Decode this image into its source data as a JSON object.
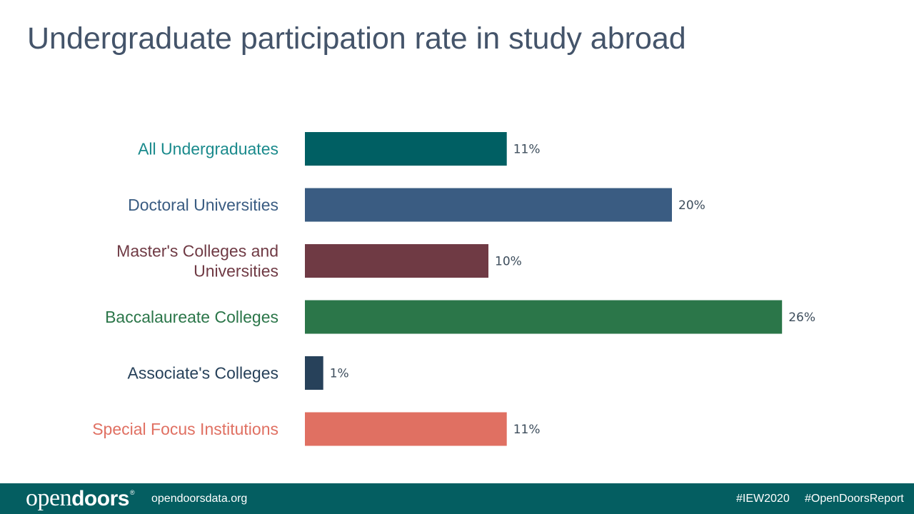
{
  "header": {
    "title": "Undergraduate participation rate in study abroad"
  },
  "chart_data": {
    "type": "bar",
    "orientation": "horizontal",
    "title": "Undergraduate participation rate in study abroad",
    "categories": [
      "All Undergraduates",
      "Doctoral Universities",
      "Master's Colleges and Universities",
      "Baccalaureate Colleges",
      "Associate's Colleges",
      "Special Focus Institutions"
    ],
    "category_lines": [
      [
        "All Undergraduates"
      ],
      [
        "Doctoral Universities"
      ],
      [
        "Master's Colleges and",
        "Universities"
      ],
      [
        "Baccalaureate Colleges"
      ],
      [
        "Associate's Colleges"
      ],
      [
        "Special Focus Institutions"
      ]
    ],
    "values": [
      11,
      20,
      10,
      26,
      1,
      11
    ],
    "value_labels": [
      "11%",
      "20%",
      "10%",
      "26%",
      "1%",
      "11%"
    ],
    "colors": [
      "#005f63",
      "#3a5c82",
      "#6f3a44",
      "#2b7649",
      "#27415a",
      "#e07062"
    ],
    "label_colors": [
      "#1a8a8c",
      "#3a5c82",
      "#6f3a44",
      "#2b7649",
      "#27415a",
      "#e07062"
    ],
    "value_label_color": "#3d4d5c",
    "xlim": [
      0,
      27
    ],
    "grid": false,
    "legend": "none"
  },
  "footer": {
    "logo_light": "open",
    "logo_bold": "doors",
    "logo_mark": "®",
    "site": "opendoorsdata.org",
    "tags": [
      "#IEW2020",
      "#OpenDoorsReport"
    ],
    "background": "#045e61"
  }
}
